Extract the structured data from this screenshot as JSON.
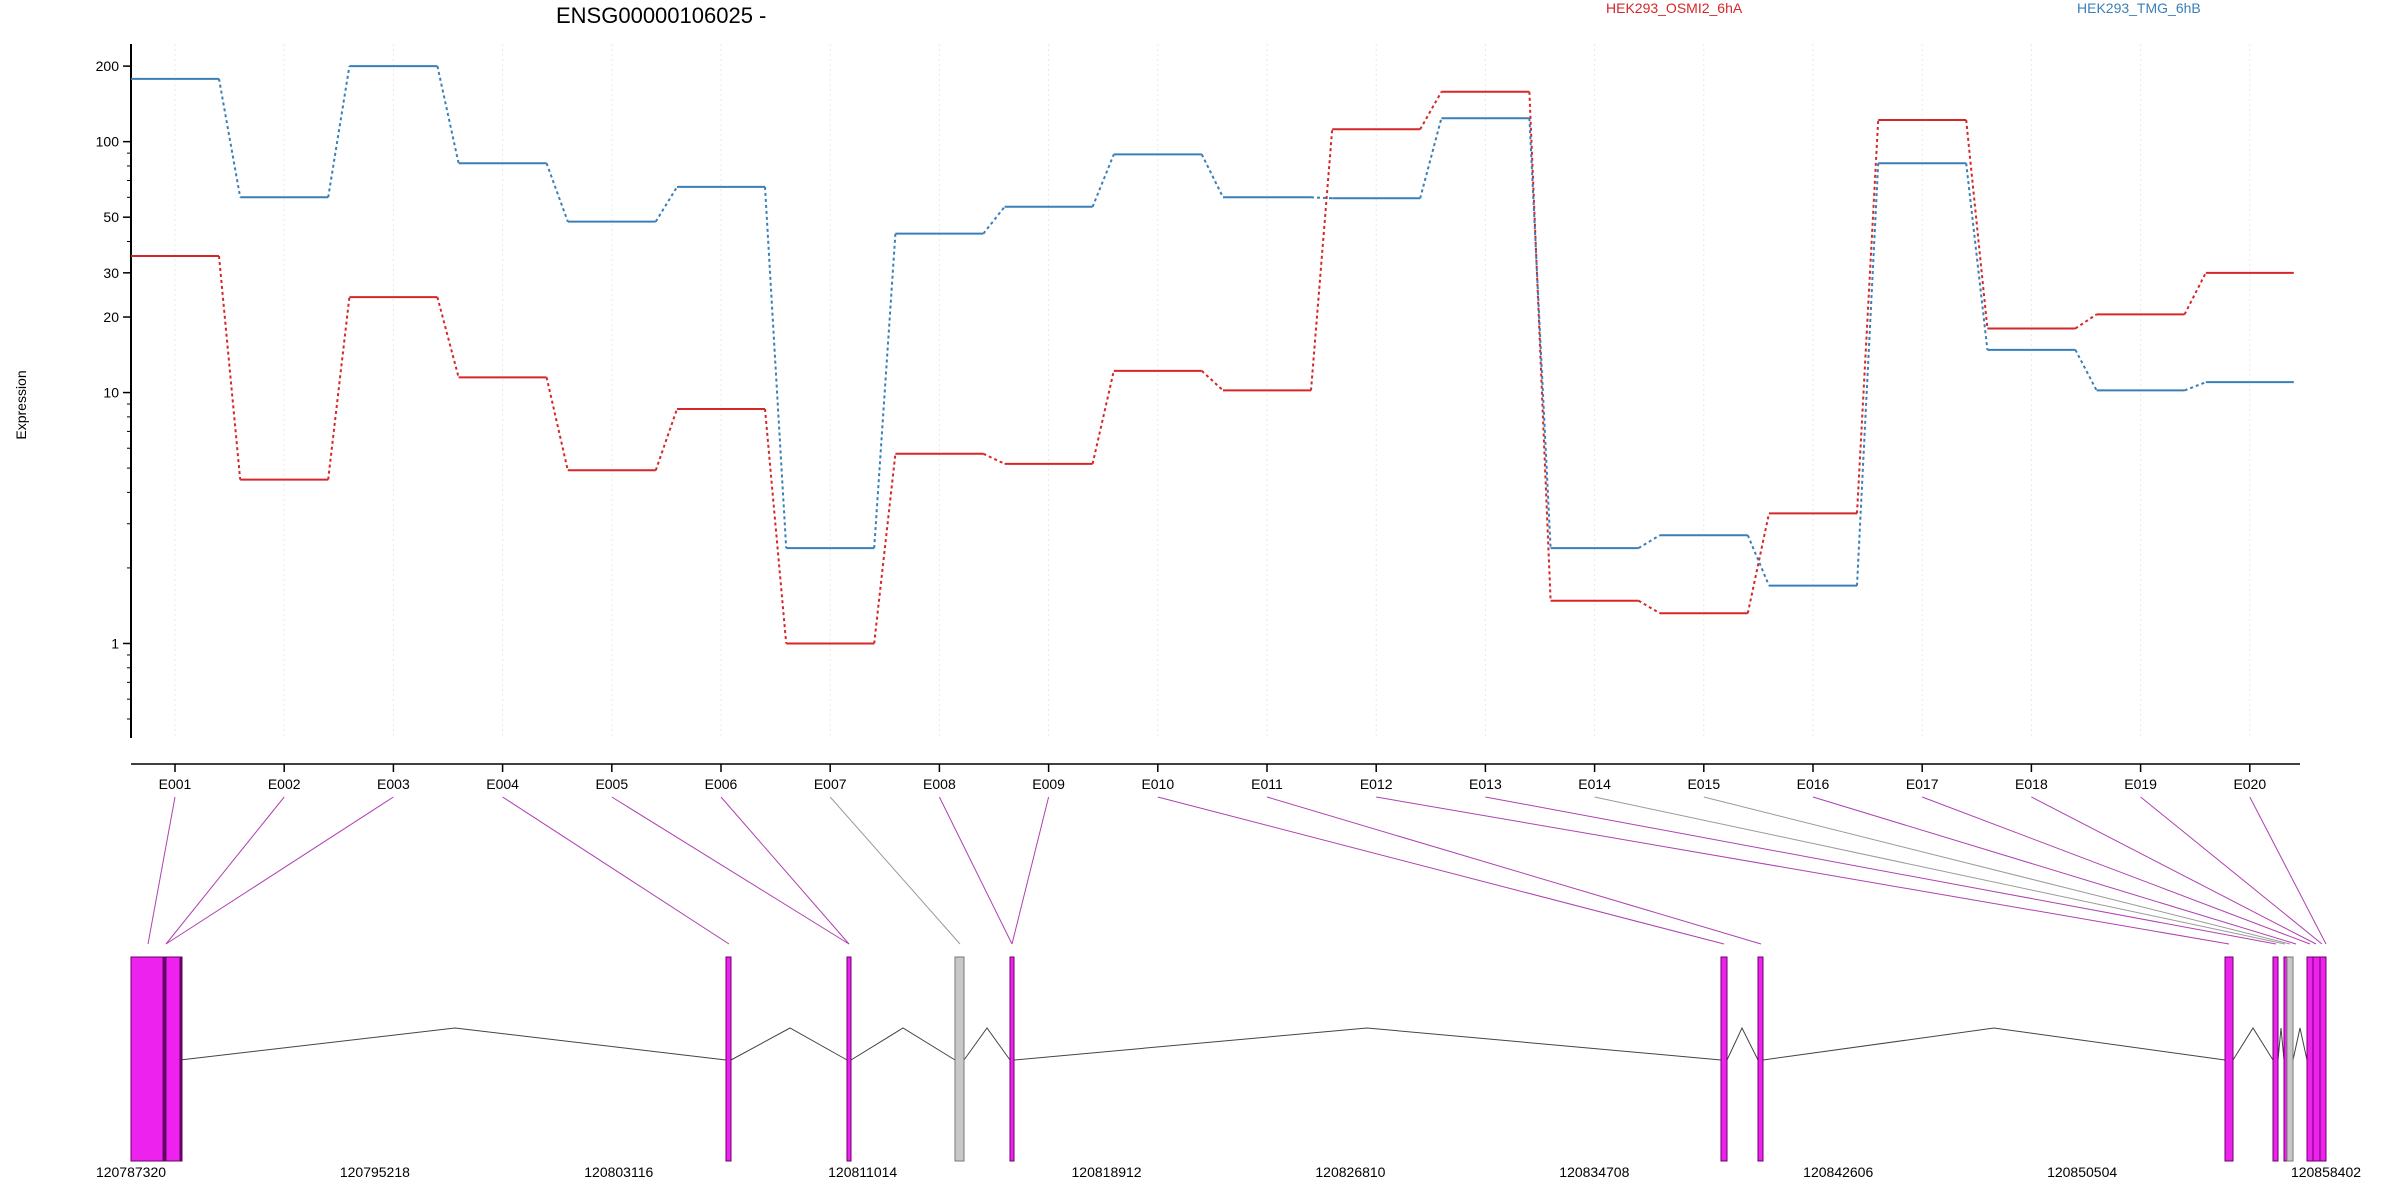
{
  "chart_data": {
    "type": "line",
    "title": "ENSG00000106025 -",
    "ylabel": "Expression",
    "xlabel": "",
    "y_scale": "log",
    "ylim": [
      0.42,
      245
    ],
    "y_ticks": [
      "200",
      "100",
      "50",
      "30",
      "20",
      "10",
      "1"
    ],
    "categories": [
      "E001",
      "E002",
      "E003",
      "E004",
      "E005",
      "E006",
      "E007",
      "E008",
      "E009",
      "E010",
      "E011",
      "E012",
      "E013",
      "E014",
      "E015",
      "E016",
      "E017",
      "E018",
      "E019",
      "E020"
    ],
    "series": [
      {
        "name": "HEK293_OSMI2_6hA",
        "color": "#d62728",
        "values": [
          35,
          4.5,
          24,
          11.5,
          4.9,
          8.6,
          1,
          5.7,
          5.2,
          12.2,
          10.2,
          112,
          158,
          1.48,
          1.32,
          3.3,
          122,
          18,
          20.5,
          30
        ]
      },
      {
        "name": "HEK293_TMG_6hB",
        "color": "#3a7fb8",
        "values": [
          178,
          60,
          200,
          82,
          48,
          66,
          2.4,
          43,
          55,
          89,
          60,
          59.5,
          124,
          2.4,
          2.7,
          1.7,
          82,
          14.8,
          10.2,
          11
        ]
      }
    ],
    "gene_track": {
      "coordinate_labels": [
        "120787320",
        "120795218",
        "120803116",
        "120811014",
        "120818912",
        "120826810",
        "120834708",
        "120842606",
        "120850504",
        "120858402"
      ],
      "coordinate_min": 120787320,
      "coordinate_max": 120858402,
      "exon_colors": {
        "tested": "#ee22ee",
        "untested": "#c8c8c8"
      }
    }
  }
}
